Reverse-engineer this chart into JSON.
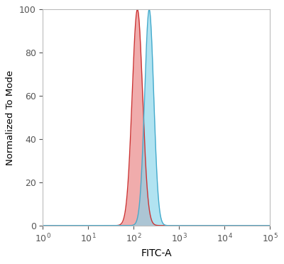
{
  "xlabel": "FITC-A",
  "ylabel": "Normalized To Mode",
  "xlim": [
    1,
    100000
  ],
  "ylim": [
    0,
    100
  ],
  "yticks": [
    0,
    20,
    40,
    60,
    80,
    100
  ],
  "red_peak_log": 2.08,
  "red_sigma_log": 0.115,
  "blue_peak_log": 2.34,
  "blue_sigma_log": 0.1,
  "red_fill_color": "#e88080",
  "red_line_color": "#cc3333",
  "blue_fill_color": "#88d4ea",
  "blue_line_color": "#44aacc",
  "red_fill_alpha": 0.65,
  "blue_fill_alpha": 0.65,
  "background_color": "#ffffff",
  "figure_bg": "#ffffff",
  "spine_color": "#bbbbbb",
  "figsize": [
    4.0,
    3.72
  ],
  "dpi": 100,
  "ylabel_fontsize": 9.5,
  "xlabel_fontsize": 10,
  "tick_fontsize": 9
}
